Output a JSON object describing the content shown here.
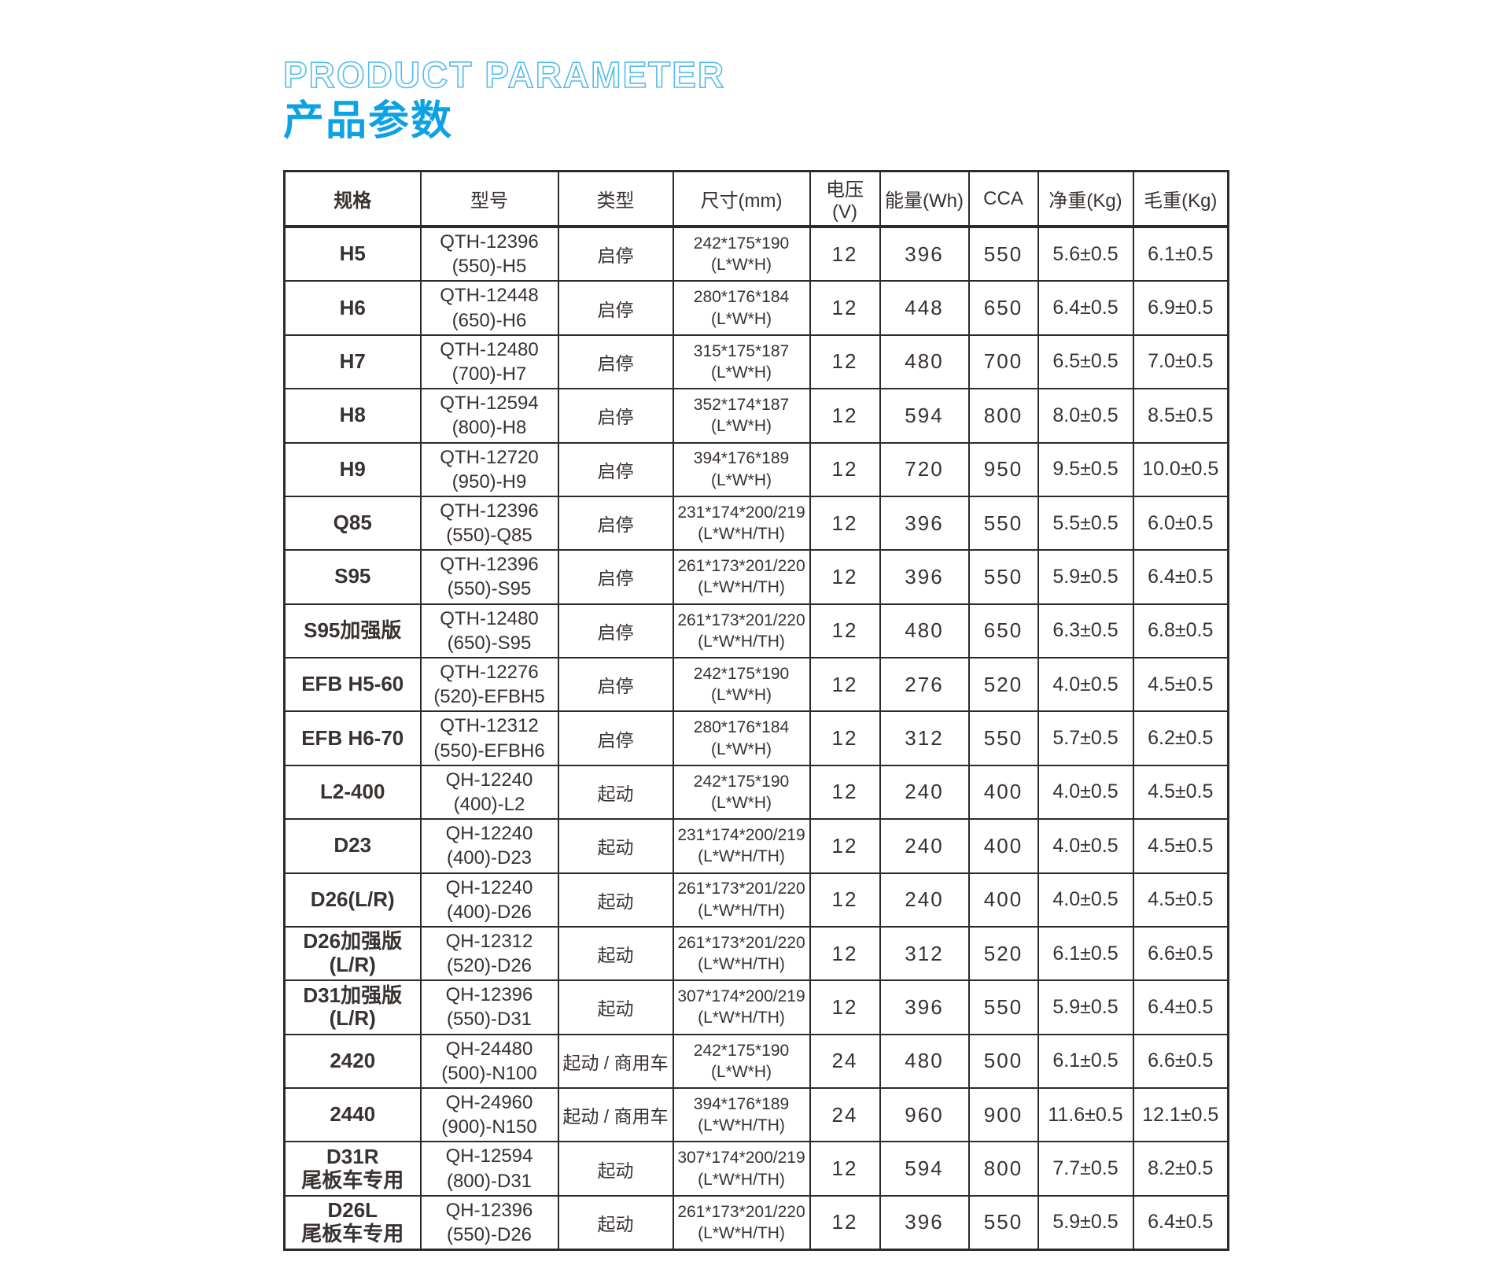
{
  "page": {
    "title_en": "PRODUCT PARAMETER",
    "title_cn": "产品参数",
    "accent_color": "#0da2e4",
    "outline_color": "#54bce9",
    "border_color": "#2e2a27"
  },
  "table": {
    "headers": [
      "规格",
      "型号",
      "类型",
      "尺寸(mm)",
      "电压(V)",
      "能量(Wh)",
      "CCA",
      "净重(Kg)",
      "毛重(Kg)"
    ],
    "rows": [
      {
        "spec": [
          "H5"
        ],
        "model": [
          "QTH-12396",
          "(550)-H5"
        ],
        "type": "启停",
        "dims": [
          "242*175*190",
          "(L*W*H)"
        ],
        "voltage": "12",
        "energy": "396",
        "cca": "550",
        "net_weight": "5.6±0.5",
        "gross_weight": "6.1±0.5"
      },
      {
        "spec": [
          "H6"
        ],
        "model": [
          "QTH-12448",
          "(650)-H6"
        ],
        "type": "启停",
        "dims": [
          "280*176*184",
          "(L*W*H)"
        ],
        "voltage": "12",
        "energy": "448",
        "cca": "650",
        "net_weight": "6.4±0.5",
        "gross_weight": "6.9±0.5"
      },
      {
        "spec": [
          "H7"
        ],
        "model": [
          "QTH-12480",
          "(700)-H7"
        ],
        "type": "启停",
        "dims": [
          "315*175*187",
          "(L*W*H)"
        ],
        "voltage": "12",
        "energy": "480",
        "cca": "700",
        "net_weight": "6.5±0.5",
        "gross_weight": "7.0±0.5"
      },
      {
        "spec": [
          "H8"
        ],
        "model": [
          "QTH-12594",
          "(800)-H8"
        ],
        "type": "启停",
        "dims": [
          "352*174*187",
          "(L*W*H)"
        ],
        "voltage": "12",
        "energy": "594",
        "cca": "800",
        "net_weight": "8.0±0.5",
        "gross_weight": "8.5±0.5"
      },
      {
        "spec": [
          "H9"
        ],
        "model": [
          "QTH-12720",
          "(950)-H9"
        ],
        "type": "启停",
        "dims": [
          "394*176*189",
          "(L*W*H)"
        ],
        "voltage": "12",
        "energy": "720",
        "cca": "950",
        "net_weight": "9.5±0.5",
        "gross_weight": "10.0±0.5"
      },
      {
        "spec": [
          "Q85"
        ],
        "model": [
          "QTH-12396",
          "(550)-Q85"
        ],
        "type": "启停",
        "dims": [
          "231*174*200/219",
          "(L*W*H/TH)"
        ],
        "voltage": "12",
        "energy": "396",
        "cca": "550",
        "net_weight": "5.5±0.5",
        "gross_weight": "6.0±0.5"
      },
      {
        "spec": [
          "S95"
        ],
        "model": [
          "QTH-12396",
          "(550)-S95"
        ],
        "type": "启停",
        "dims": [
          "261*173*201/220",
          "(L*W*H/TH)"
        ],
        "voltage": "12",
        "energy": "396",
        "cca": "550",
        "net_weight": "5.9±0.5",
        "gross_weight": "6.4±0.5"
      },
      {
        "spec": [
          "S95加强版"
        ],
        "model": [
          "QTH-12480",
          "(650)-S95"
        ],
        "type": "启停",
        "dims": [
          "261*173*201/220",
          "(L*W*H/TH)"
        ],
        "voltage": "12",
        "energy": "480",
        "cca": "650",
        "net_weight": "6.3±0.5",
        "gross_weight": "6.8±0.5"
      },
      {
        "spec": [
          "EFB H5-60"
        ],
        "model": [
          "QTH-12276",
          "(520)-EFBH5"
        ],
        "type": "启停",
        "dims": [
          "242*175*190",
          "(L*W*H)"
        ],
        "voltage": "12",
        "energy": "276",
        "cca": "520",
        "net_weight": "4.0±0.5",
        "gross_weight": "4.5±0.5"
      },
      {
        "spec": [
          "EFB H6-70"
        ],
        "model": [
          "QTH-12312",
          "(550)-EFBH6"
        ],
        "type": "启停",
        "dims": [
          "280*176*184",
          "(L*W*H)"
        ],
        "voltage": "12",
        "energy": "312",
        "cca": "550",
        "net_weight": "5.7±0.5",
        "gross_weight": "6.2±0.5"
      },
      {
        "spec": [
          "L2-400"
        ],
        "model": [
          "QH-12240",
          "(400)-L2"
        ],
        "type": "起动",
        "dims": [
          "242*175*190",
          "(L*W*H)"
        ],
        "voltage": "12",
        "energy": "240",
        "cca": "400",
        "net_weight": "4.0±0.5",
        "gross_weight": "4.5±0.5"
      },
      {
        "spec": [
          "D23"
        ],
        "model": [
          "QH-12240",
          "(400)-D23"
        ],
        "type": "起动",
        "dims": [
          "231*174*200/219",
          "(L*W*H/TH)"
        ],
        "voltage": "12",
        "energy": "240",
        "cca": "400",
        "net_weight": "4.0±0.5",
        "gross_weight": "4.5±0.5"
      },
      {
        "spec": [
          "D26(L/R)"
        ],
        "model": [
          "QH-12240",
          "(400)-D26"
        ],
        "type": "起动",
        "dims": [
          "261*173*201/220",
          "(L*W*H/TH)"
        ],
        "voltage": "12",
        "energy": "240",
        "cca": "400",
        "net_weight": "4.0±0.5",
        "gross_weight": "4.5±0.5"
      },
      {
        "spec": [
          "D26加强版",
          "(L/R)"
        ],
        "model": [
          "QH-12312",
          "(520)-D26"
        ],
        "type": "起动",
        "dims": [
          "261*173*201/220",
          "(L*W*H/TH)"
        ],
        "voltage": "12",
        "energy": "312",
        "cca": "520",
        "net_weight": "6.1±0.5",
        "gross_weight": "6.6±0.5"
      },
      {
        "spec": [
          "D31加强版",
          "(L/R)"
        ],
        "model": [
          "QH-12396",
          "(550)-D31"
        ],
        "type": "起动",
        "dims": [
          "307*174*200/219",
          "(L*W*H/TH)"
        ],
        "voltage": "12",
        "energy": "396",
        "cca": "550",
        "net_weight": "5.9±0.5",
        "gross_weight": "6.4±0.5"
      },
      {
        "spec": [
          "2420"
        ],
        "model": [
          "QH-24480",
          "(500)-N100"
        ],
        "type": "起动 / 商用车",
        "dims": [
          "242*175*190",
          "(L*W*H)"
        ],
        "voltage": "24",
        "energy": "480",
        "cca": "500",
        "net_weight": "6.1±0.5",
        "gross_weight": "6.6±0.5"
      },
      {
        "spec": [
          "2440"
        ],
        "model": [
          "QH-24960",
          "(900)-N150"
        ],
        "type": "起动 / 商用车",
        "dims": [
          "394*176*189",
          "(L*W*H/TH)"
        ],
        "voltage": "24",
        "energy": "960",
        "cca": "900",
        "net_weight": "11.6±0.5",
        "gross_weight": "12.1±0.5"
      },
      {
        "spec": [
          "D31R",
          "尾板车专用"
        ],
        "model": [
          "QH-12594",
          "(800)-D31"
        ],
        "type": "起动",
        "dims": [
          "307*174*200/219",
          "(L*W*H/TH)"
        ],
        "voltage": "12",
        "energy": "594",
        "cca": "800",
        "net_weight": "7.7±0.5",
        "gross_weight": "8.2±0.5"
      },
      {
        "spec": [
          "D26L",
          "尾板车专用"
        ],
        "model": [
          "QH-12396",
          "(550)-D26"
        ],
        "type": "起动",
        "dims": [
          "261*173*201/220",
          "(L*W*H/TH)"
        ],
        "voltage": "12",
        "energy": "396",
        "cca": "550",
        "net_weight": "5.9±0.5",
        "gross_weight": "6.4±0.5"
      }
    ]
  }
}
